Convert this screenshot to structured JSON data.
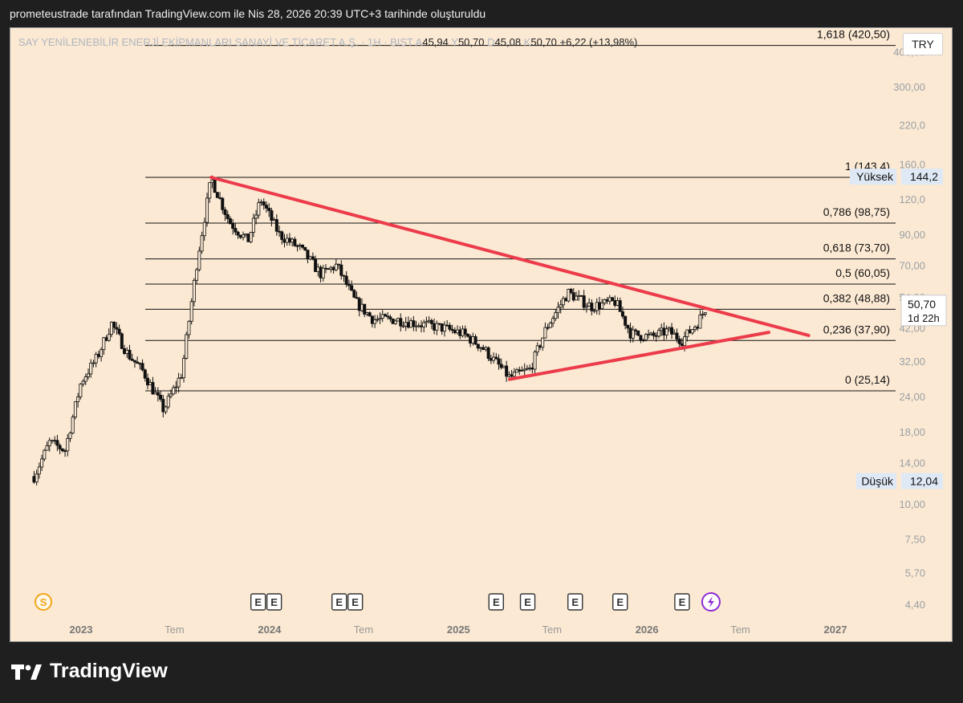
{
  "caption": "prometeustrade tarafından TradingView.com ile Nis 28, 2026 20:39 UTC+3 tarihinde oluşturuldu",
  "legend": {
    "symbol": "SAY YENİLENEBİLİR ENERJİ EKİPMANLARI SANAYİ VE TİCARET A.Ş. · 1H · BIST",
    "open_key": "A",
    "open": "45,94",
    "high_key": "Y",
    "high": "50,70",
    "low_key": "D",
    "low": "45,08",
    "close_key": "K",
    "close": "50,70",
    "change": "+6,22 (+13,98%)"
  },
  "currency": "TRY",
  "brand": "TradingView",
  "colors": {
    "background": "#fbe9d3",
    "candle": "#111111",
    "trendline": "#ec3b4a",
    "fib_line": "#111111",
    "label_bg": "#dfe9f5"
  },
  "chart_data": {
    "type": "candlestick",
    "scale": "log",
    "y_ticks": [
      "400,00",
      "300,00",
      "220,0",
      "160,0",
      "120,0",
      "90,00",
      "70,00",
      "54,00",
      "42,00",
      "32,00",
      "24,00",
      "18,00",
      "14,00",
      "10,00",
      "7,50",
      "5,70",
      "4,40"
    ],
    "y_tick_values": [
      400,
      300,
      220,
      160,
      120,
      90,
      70,
      54,
      42,
      32,
      24,
      18,
      14,
      10,
      7.5,
      5.7,
      4.4
    ],
    "x_ticks": [
      {
        "label": "2023",
        "x": "2023-01-01",
        "bold": true
      },
      {
        "label": "Tem",
        "x": "2023-07-01",
        "bold": false
      },
      {
        "label": "2024",
        "x": "2024-01-01",
        "bold": true
      },
      {
        "label": "Tem",
        "x": "2024-07-01",
        "bold": false
      },
      {
        "label": "2025",
        "x": "2025-01-01",
        "bold": true
      },
      {
        "label": "Tem",
        "x": "2025-07-01",
        "bold": false
      },
      {
        "label": "2026",
        "x": "2026-01-01",
        "bold": true
      },
      {
        "label": "Tem",
        "x": "2026-07-01",
        "bold": false
      },
      {
        "label": "2027",
        "x": "2027-01-01",
        "bold": true
      }
    ],
    "fib_levels": [
      {
        "label": "1,618 (420,50)",
        "value": 420.5
      },
      {
        "label": "1 (143,4)",
        "value": 143.4
      },
      {
        "label": "0,786 (98,75)",
        "value": 98.75
      },
      {
        "label": "0,618 (73,70)",
        "value": 73.7
      },
      {
        "label": "0,5 (60,05)",
        "value": 60.05
      },
      {
        "label": "0,382 (48,88)",
        "value": 48.88
      },
      {
        "label": "0,236 (37,90)",
        "value": 37.9
      },
      {
        "label": "0 (25,14)",
        "value": 25.14
      }
    ],
    "price_labels": [
      {
        "name": "Yüksek",
        "value_text": "144,2",
        "value": 144.2
      },
      {
        "name": "Düşük",
        "value_text": "12,04",
        "value": 12.04
      }
    ],
    "last_price": {
      "value_text": "50,70",
      "value": 50.7,
      "countdown": "1d 22h"
    },
    "trendlines": [
      {
        "from": {
          "x": "2023-09-10",
          "y": 143.4
        },
        "to": {
          "x": "2026-11-10",
          "y": 39.5
        }
      },
      {
        "from": {
          "x": "2025-04-10",
          "y": 27.6
        },
        "to": {
          "x": "2026-08-25",
          "y": 40.5
        }
      }
    ],
    "events": [
      {
        "type": "S",
        "x": "2022-10-20"
      },
      {
        "type": "E",
        "x": "2023-12-10"
      },
      {
        "type": "E",
        "x": "2024-01-10"
      },
      {
        "type": "E",
        "x": "2024-05-15"
      },
      {
        "type": "E",
        "x": "2024-06-15"
      },
      {
        "type": "E",
        "x": "2025-03-15"
      },
      {
        "type": "E",
        "x": "2025-05-15"
      },
      {
        "type": "E",
        "x": "2025-08-15"
      },
      {
        "type": "E",
        "x": "2025-11-10"
      },
      {
        "type": "E",
        "x": "2026-03-10"
      },
      {
        "type": "flash",
        "x": "2026-05-05"
      }
    ],
    "anchors": [
      {
        "x": "2022-10-02",
        "y": 12.5
      },
      {
        "x": "2022-11-01",
        "y": 16.5
      },
      {
        "x": "2022-12-01",
        "y": 15.5
      },
      {
        "x": "2023-01-01",
        "y": 27.0
      },
      {
        "x": "2023-02-01",
        "y": 33.0
      },
      {
        "x": "2023-03-01",
        "y": 43.5
      },
      {
        "x": "2023-04-01",
        "y": 34.0
      },
      {
        "x": "2023-05-01",
        "y": 29.5
      },
      {
        "x": "2023-06-10",
        "y": 21.5
      },
      {
        "x": "2023-07-15",
        "y": 29.0
      },
      {
        "x": "2023-08-15",
        "y": 75.0
      },
      {
        "x": "2023-09-10",
        "y": 142.0
      },
      {
        "x": "2023-10-15",
        "y": 100.0
      },
      {
        "x": "2023-11-20",
        "y": 85.0
      },
      {
        "x": "2023-12-15",
        "y": 120.0
      },
      {
        "x": "2024-01-20",
        "y": 90.0
      },
      {
        "x": "2024-03-01",
        "y": 80.0
      },
      {
        "x": "2024-04-10",
        "y": 65.0
      },
      {
        "x": "2024-05-10",
        "y": 70.0
      },
      {
        "x": "2024-06-15",
        "y": 52.0
      },
      {
        "x": "2024-07-20",
        "y": 45.0
      },
      {
        "x": "2024-09-01",
        "y": 45.0
      },
      {
        "x": "2024-10-15",
        "y": 43.5
      },
      {
        "x": "2024-12-01",
        "y": 42.0
      },
      {
        "x": "2025-01-10",
        "y": 40.0
      },
      {
        "x": "2025-02-15",
        "y": 36.0
      },
      {
        "x": "2025-04-10",
        "y": 28.0
      },
      {
        "x": "2025-05-20",
        "y": 30.0
      },
      {
        "x": "2025-06-20",
        "y": 42.0
      },
      {
        "x": "2025-08-01",
        "y": 56.0
      },
      {
        "x": "2025-09-15",
        "y": 50.0
      },
      {
        "x": "2025-11-01",
        "y": 52.0
      },
      {
        "x": "2025-12-01",
        "y": 40.0
      },
      {
        "x": "2026-01-10",
        "y": 39.0
      },
      {
        "x": "2026-02-10",
        "y": 41.0
      },
      {
        "x": "2026-03-10",
        "y": 38.0
      },
      {
        "x": "2026-04-10",
        "y": 44.0
      },
      {
        "x": "2026-04-28",
        "y": 50.7
      }
    ]
  }
}
